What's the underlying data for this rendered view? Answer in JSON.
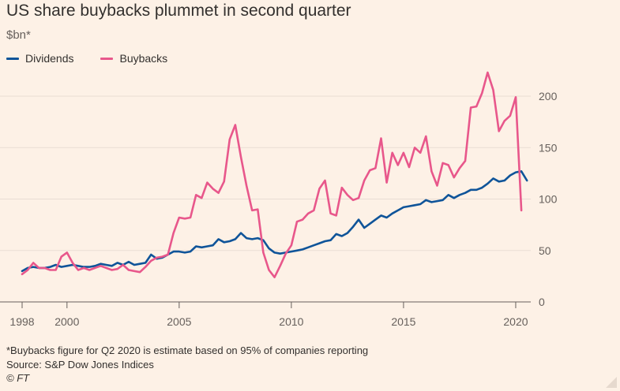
{
  "header": {
    "title": "US share buybacks plummet in second quarter",
    "unit": "$bn*"
  },
  "footer": {
    "footnote": "*Buybacks figure for Q2 2020 is estimate based on 95% of companies reporting",
    "source": "Source: S&P Dow Jones Indices",
    "copyright": "© FT"
  },
  "chart_data": {
    "type": "line",
    "title": "US share buybacks plummet in second quarter",
    "ylabel": "$bn*",
    "xlabel": "",
    "xlim": [
      1998,
      2020.6
    ],
    "ylim": [
      0,
      210
    ],
    "x_ticks": [
      1998,
      2000,
      2005,
      2010,
      2015,
      2020
    ],
    "y_ticks": [
      0,
      50,
      100,
      150,
      200
    ],
    "y_axis_side": "right",
    "grid": true,
    "legend_position": "top-left",
    "colors": {
      "background": "#fdf1e6",
      "grid": "#e9ddd3",
      "text": "#66605c"
    },
    "series": [
      {
        "name": "Dividends",
        "color": "#0f5499",
        "points": [
          [
            1998.0,
            30
          ],
          [
            1998.25,
            33
          ],
          [
            1998.5,
            34
          ],
          [
            1998.75,
            33
          ],
          [
            1999.0,
            33
          ],
          [
            1999.25,
            34
          ],
          [
            1999.5,
            36
          ],
          [
            1999.75,
            34
          ],
          [
            2000.0,
            35
          ],
          [
            2000.25,
            36
          ],
          [
            2000.5,
            35
          ],
          [
            2000.75,
            34
          ],
          [
            2001.0,
            34
          ],
          [
            2001.25,
            35
          ],
          [
            2001.5,
            37
          ],
          [
            2001.75,
            36
          ],
          [
            2002.0,
            35
          ],
          [
            2002.25,
            38
          ],
          [
            2002.5,
            36
          ],
          [
            2002.75,
            39
          ],
          [
            2003.0,
            36
          ],
          [
            2003.25,
            37
          ],
          [
            2003.5,
            38
          ],
          [
            2003.75,
            46
          ],
          [
            2004.0,
            42
          ],
          [
            2004.25,
            43
          ],
          [
            2004.5,
            46
          ],
          [
            2004.75,
            49
          ],
          [
            2005.0,
            49
          ],
          [
            2005.25,
            48
          ],
          [
            2005.5,
            49
          ],
          [
            2005.75,
            54
          ],
          [
            2006.0,
            53
          ],
          [
            2006.25,
            54
          ],
          [
            2006.5,
            55
          ],
          [
            2006.75,
            61
          ],
          [
            2007.0,
            58
          ],
          [
            2007.25,
            59
          ],
          [
            2007.5,
            61
          ],
          [
            2007.75,
            67
          ],
          [
            2008.0,
            62
          ],
          [
            2008.25,
            61
          ],
          [
            2008.5,
            62
          ],
          [
            2008.75,
            60
          ],
          [
            2009.0,
            52
          ],
          [
            2009.25,
            48
          ],
          [
            2009.5,
            47
          ],
          [
            2009.75,
            48
          ],
          [
            2010.0,
            49
          ],
          [
            2010.25,
            50
          ],
          [
            2010.5,
            51
          ],
          [
            2010.75,
            53
          ],
          [
            2011.0,
            55
          ],
          [
            2011.25,
            57
          ],
          [
            2011.5,
            59
          ],
          [
            2011.75,
            60
          ],
          [
            2012.0,
            66
          ],
          [
            2012.25,
            64
          ],
          [
            2012.5,
            67
          ],
          [
            2012.75,
            73
          ],
          [
            2013.0,
            80
          ],
          [
            2013.25,
            72
          ],
          [
            2013.5,
            76
          ],
          [
            2013.75,
            80
          ],
          [
            2014.0,
            84
          ],
          [
            2014.25,
            82
          ],
          [
            2014.5,
            86
          ],
          [
            2014.75,
            89
          ],
          [
            2015.0,
            92
          ],
          [
            2015.25,
            93
          ],
          [
            2015.5,
            94
          ],
          [
            2015.75,
            95
          ],
          [
            2016.0,
            99
          ],
          [
            2016.25,
            97
          ],
          [
            2016.5,
            98
          ],
          [
            2016.75,
            99
          ],
          [
            2017.0,
            104
          ],
          [
            2017.25,
            101
          ],
          [
            2017.5,
            104
          ],
          [
            2017.75,
            106
          ],
          [
            2018.0,
            109
          ],
          [
            2018.25,
            109
          ],
          [
            2018.5,
            111
          ],
          [
            2018.75,
            115
          ],
          [
            2019.0,
            120
          ],
          [
            2019.25,
            117
          ],
          [
            2019.5,
            118
          ],
          [
            2019.75,
            123
          ],
          [
            2020.0,
            126
          ],
          [
            2020.25,
            127
          ],
          [
            2020.5,
            118
          ]
        ]
      },
      {
        "name": "Buybacks",
        "color": "#e8578b",
        "points": [
          [
            1998.0,
            27
          ],
          [
            1998.25,
            31
          ],
          [
            1998.5,
            38
          ],
          [
            1998.75,
            33
          ],
          [
            1999.0,
            33
          ],
          [
            1999.25,
            31
          ],
          [
            1999.5,
            31
          ],
          [
            1999.75,
            44
          ],
          [
            2000.0,
            48
          ],
          [
            2000.25,
            38
          ],
          [
            2000.5,
            31
          ],
          [
            2000.75,
            33
          ],
          [
            2001.0,
            31
          ],
          [
            2001.25,
            33
          ],
          [
            2001.5,
            35
          ],
          [
            2001.75,
            33
          ],
          [
            2002.0,
            31
          ],
          [
            2002.25,
            32
          ],
          [
            2002.5,
            36
          ],
          [
            2002.75,
            31
          ],
          [
            2003.0,
            30
          ],
          [
            2003.25,
            29
          ],
          [
            2003.5,
            34
          ],
          [
            2003.75,
            40
          ],
          [
            2004.0,
            43
          ],
          [
            2004.25,
            44
          ],
          [
            2004.5,
            46
          ],
          [
            2004.75,
            67
          ],
          [
            2005.0,
            82
          ],
          [
            2005.25,
            81
          ],
          [
            2005.5,
            82
          ],
          [
            2005.75,
            104
          ],
          [
            2006.0,
            101
          ],
          [
            2006.25,
            116
          ],
          [
            2006.5,
            110
          ],
          [
            2006.75,
            106
          ],
          [
            2007.0,
            117
          ],
          [
            2007.25,
            158
          ],
          [
            2007.5,
            172
          ],
          [
            2007.75,
            141
          ],
          [
            2008.0,
            113
          ],
          [
            2008.25,
            89
          ],
          [
            2008.5,
            90
          ],
          [
            2008.75,
            48
          ],
          [
            2009.0,
            31
          ],
          [
            2009.25,
            24
          ],
          [
            2009.5,
            35
          ],
          [
            2009.75,
            47
          ],
          [
            2010.0,
            55
          ],
          [
            2010.25,
            78
          ],
          [
            2010.5,
            80
          ],
          [
            2010.75,
            86
          ],
          [
            2011.0,
            89
          ],
          [
            2011.25,
            110
          ],
          [
            2011.5,
            118
          ],
          [
            2011.75,
            86
          ],
          [
            2012.0,
            84
          ],
          [
            2012.25,
            111
          ],
          [
            2012.5,
            104
          ],
          [
            2012.75,
            99
          ],
          [
            2013.0,
            101
          ],
          [
            2013.25,
            118
          ],
          [
            2013.5,
            128
          ],
          [
            2013.75,
            130
          ],
          [
            2014.0,
            159
          ],
          [
            2014.25,
            116
          ],
          [
            2014.5,
            145
          ],
          [
            2014.75,
            133
          ],
          [
            2015.0,
            145
          ],
          [
            2015.25,
            131
          ],
          [
            2015.5,
            150
          ],
          [
            2015.75,
            145
          ],
          [
            2016.0,
            161
          ],
          [
            2016.25,
            127
          ],
          [
            2016.5,
            113
          ],
          [
            2016.75,
            135
          ],
          [
            2017.0,
            133
          ],
          [
            2017.25,
            121
          ],
          [
            2017.5,
            130
          ],
          [
            2017.75,
            137
          ],
          [
            2018.0,
            189
          ],
          [
            2018.25,
            190
          ],
          [
            2018.5,
            203
          ],
          [
            2018.75,
            223
          ],
          [
            2019.0,
            206
          ],
          [
            2019.25,
            166
          ],
          [
            2019.5,
            176
          ],
          [
            2019.75,
            181
          ],
          [
            2020.0,
            199
          ],
          [
            2020.25,
            89
          ]
        ]
      }
    ]
  }
}
